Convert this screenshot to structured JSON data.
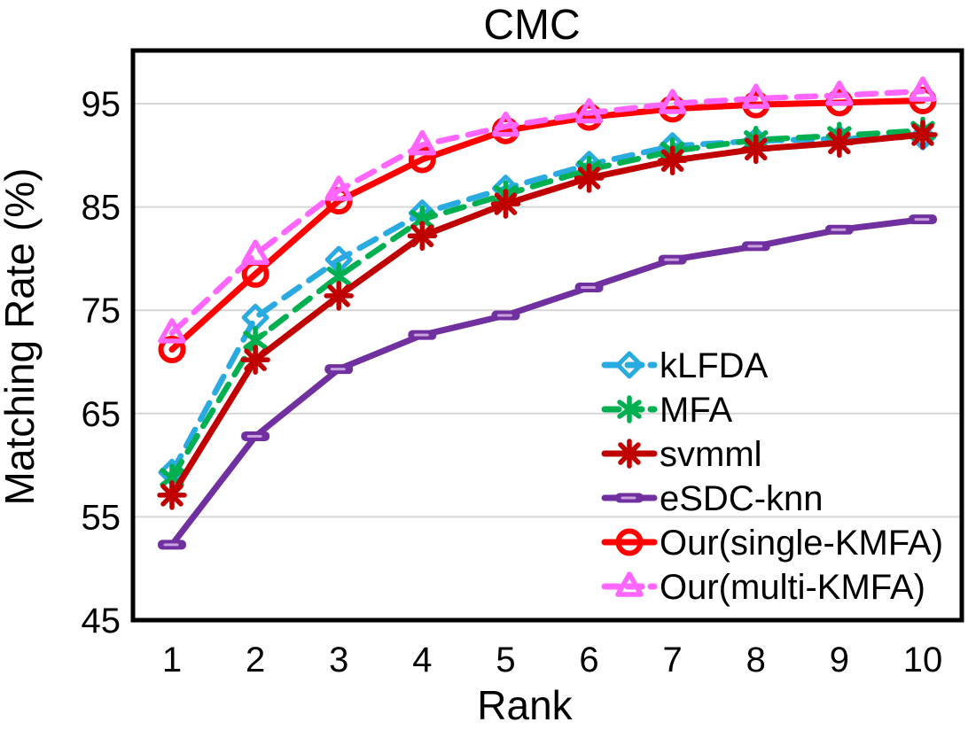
{
  "chart_data": {
    "type": "line",
    "title": "CMC",
    "xlabel": "Rank",
    "ylabel": "Matching Rate (%)",
    "x": [
      1,
      2,
      3,
      4,
      5,
      6,
      7,
      8,
      9,
      10
    ],
    "x_ticks": [
      "1",
      "2",
      "3",
      "4",
      "5",
      "6",
      "7",
      "8",
      "9",
      "10"
    ],
    "y_ticks": [
      45,
      55,
      65,
      75,
      85,
      95
    ],
    "ylim": [
      45,
      100
    ],
    "xlim": [
      1,
      10
    ],
    "grid": "horizontal",
    "legend_position": "inside-right-bottom",
    "colors": {
      "grid": "#D6D6D6",
      "axis_border": "#000000",
      "background": "#FFFFFF"
    },
    "series": [
      {
        "name": "kLFDA",
        "color": "#29ABE2",
        "line_style": "dashed",
        "marker": "diamond",
        "values": [
          59.3,
          74.3,
          79.9,
          84.4,
          86.8,
          89.1,
          90.9,
          91.4,
          91.6,
          91.8
        ]
      },
      {
        "name": "MFA",
        "color": "#00B050",
        "line_style": "dashed",
        "marker": "asterisk-6",
        "values": [
          58.8,
          72.1,
          78.3,
          83.8,
          86.2,
          88.6,
          90.4,
          91.5,
          91.9,
          92.4
        ]
      },
      {
        "name": "svmml",
        "color": "#C00000",
        "line_style": "solid",
        "marker": "asterisk-8",
        "values": [
          57.1,
          70.2,
          76.4,
          82.2,
          85.3,
          87.8,
          89.5,
          90.6,
          91.2,
          92.0
        ]
      },
      {
        "name": "eSDC-knn",
        "color": "#7030A0",
        "line_style": "solid",
        "marker": "dash",
        "values": [
          52.3,
          62.8,
          69.3,
          72.6,
          74.5,
          77.2,
          79.9,
          81.2,
          82.8,
          83.8
        ]
      },
      {
        "name": "Our(single-KMFA)",
        "color": "#FF0000",
        "line_style": "solid",
        "marker": "circle",
        "values": [
          71.2,
          78.5,
          85.6,
          89.6,
          92.4,
          93.7,
          94.5,
          94.9,
          95.1,
          95.3
        ]
      },
      {
        "name": "Our(multi-KMFA)",
        "color": "#FF66FF",
        "line_style": "dashed",
        "marker": "triangle",
        "values": [
          72.8,
          80.4,
          86.6,
          91.0,
          92.8,
          94.1,
          95.0,
          95.5,
          95.8,
          96.2
        ]
      }
    ]
  }
}
